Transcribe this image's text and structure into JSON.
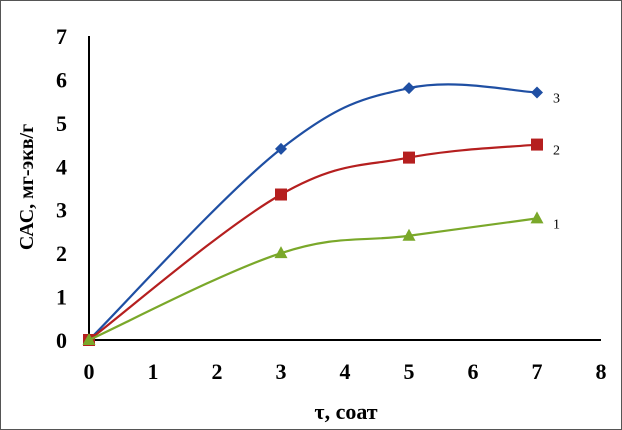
{
  "chart_data": {
    "type": "line",
    "title": "",
    "xlabel": "τ, соат",
    "ylabel": "САС, мг-экв/г",
    "xlim": [
      0,
      8
    ],
    "ylim": [
      0,
      7
    ],
    "xticks": [
      "0",
      "1",
      "2",
      "3",
      "4",
      "5",
      "6",
      "7",
      "8"
    ],
    "yticks": [
      "0",
      "1",
      "2",
      "3",
      "4",
      "5",
      "6",
      "7"
    ],
    "grid": false,
    "legend": "none (series labelled at line ends)",
    "series": [
      {
        "name": "3",
        "marker": "diamond",
        "color": "#1f4fa3",
        "x": [
          0,
          3,
          5,
          7
        ],
        "y": [
          0,
          4.4,
          5.8,
          5.7
        ]
      },
      {
        "name": "2",
        "marker": "square",
        "color": "#b51f1f",
        "x": [
          0,
          3,
          5,
          7
        ],
        "y": [
          0,
          3.35,
          4.2,
          4.5
        ]
      },
      {
        "name": "1",
        "marker": "triangle",
        "color": "#7aa82a",
        "x": [
          0,
          3,
          5,
          7
        ],
        "y": [
          0,
          2.0,
          2.4,
          2.8
        ]
      }
    ]
  }
}
